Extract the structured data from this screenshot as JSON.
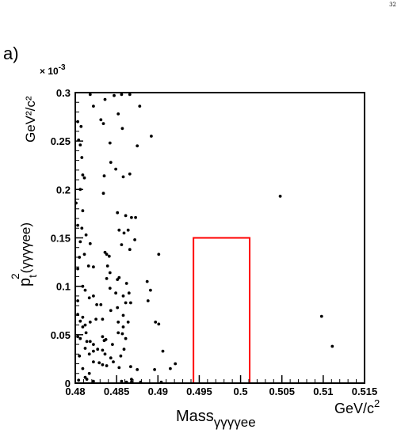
{
  "page_number": "32",
  "panel_label": "a)",
  "chart_data": {
    "type": "scatter",
    "y_multiplier": "× 10",
    "y_multiplier_exp": "-3",
    "xlabel_main": "Mass",
    "xlabel_sub": "γγγγee",
    "x_unit_main": "GeV/c",
    "x_unit_sup": "2",
    "ylabel_main": "p",
    "ylabel_sup": "2",
    "ylabel_sub": "t",
    "ylabel_rest": "(γγγγee)",
    "y_unit": "GeV²/c²",
    "xlim": [
      0.48,
      0.515
    ],
    "ylim": [
      0,
      0.3
    ],
    "xticks": [
      0.48,
      0.485,
      0.49,
      0.495,
      0.5,
      0.505,
      0.51,
      0.515
    ],
    "xtick_labels": [
      "0.48",
      "0.485",
      "0.49",
      "0.495",
      "0.5",
      "0.505",
      "0.51",
      "0.515"
    ],
    "yticks": [
      0,
      0.05,
      0.1,
      0.15,
      0.2,
      0.25,
      0.3
    ],
    "ytick_labels": [
      "0",
      "0.05",
      "0.1",
      "0.15",
      "0.2",
      "0.25",
      "0.3"
    ],
    "grid": false,
    "signal_box": {
      "x": [
        0.4943,
        0.5011
      ],
      "y": [
        0,
        0.15
      ],
      "color": "#ff0000"
    },
    "points": [
      [
        0.4818,
        0.298
      ],
      [
        0.4822,
        0.286
      ],
      [
        0.4836,
        0.293
      ],
      [
        0.4856,
        0.298
      ],
      [
        0.4866,
        0.298
      ],
      [
        0.4878,
        0.286
      ],
      [
        0.4852,
        0.278
      ],
      [
        0.4847,
        0.297
      ],
      [
        0.4803,
        0.27
      ],
      [
        0.4807,
        0.265
      ],
      [
        0.4831,
        0.272
      ],
      [
        0.4834,
        0.268
      ],
      [
        0.4857,
        0.263
      ],
      [
        0.4842,
        0.248
      ],
      [
        0.4804,
        0.251
      ],
      [
        0.4806,
        0.246
      ],
      [
        0.4875,
        0.245
      ],
      [
        0.4892,
        0.255
      ],
      [
        0.4808,
        0.233
      ],
      [
        0.4811,
        0.212
      ],
      [
        0.4809,
        0.215
      ],
      [
        0.4806,
        0.2
      ],
      [
        0.4835,
        0.214
      ],
      [
        0.4834,
        0.196
      ],
      [
        0.4843,
        0.228
      ],
      [
        0.4849,
        0.221
      ],
      [
        0.4851,
        0.176
      ],
      [
        0.4858,
        0.213
      ],
      [
        0.4861,
        0.173
      ],
      [
        0.4866,
        0.216
      ],
      [
        0.4868,
        0.171
      ],
      [
        0.4873,
        0.171
      ],
      [
        0.4801,
        0.186
      ],
      [
        0.4809,
        0.178
      ],
      [
        0.4803,
        0.163
      ],
      [
        0.4808,
        0.16
      ],
      [
        0.4813,
        0.153
      ],
      [
        0.4818,
        0.144
      ],
      [
        0.4806,
        0.146
      ],
      [
        0.4805,
        0.13
      ],
      [
        0.4811,
        0.133
      ],
      [
        0.4838,
        0.133
      ],
      [
        0.4841,
        0.131
      ],
      [
        0.4839,
        0.121
      ],
      [
        0.4842,
        0.114
      ],
      [
        0.4836,
        0.135
      ],
      [
        0.4853,
        0.158
      ],
      [
        0.4859,
        0.155
      ],
      [
        0.4864,
        0.158
      ],
      [
        0.4856,
        0.143
      ],
      [
        0.4872,
        0.148
      ],
      [
        0.4866,
        0.138
      ],
      [
        0.4901,
        0.133
      ],
      [
        0.4816,
        0.121
      ],
      [
        0.4822,
        0.12
      ],
      [
        0.4803,
        0.118
      ],
      [
        0.4809,
        0.1
      ],
      [
        0.4812,
        0.096
      ],
      [
        0.4817,
        0.088
      ],
      [
        0.4803,
        0.085
      ],
      [
        0.4822,
        0.09
      ],
      [
        0.4826,
        0.081
      ],
      [
        0.4831,
        0.081
      ],
      [
        0.4838,
        0.108
      ],
      [
        0.4842,
        0.098
      ],
      [
        0.4849,
        0.093
      ],
      [
        0.4851,
        0.107
      ],
      [
        0.4853,
        0.109
      ],
      [
        0.4858,
        0.09
      ],
      [
        0.4862,
        0.103
      ],
      [
        0.4865,
        0.093
      ],
      [
        0.4861,
        0.083
      ],
      [
        0.4867,
        0.083
      ],
      [
        0.4887,
        0.105
      ],
      [
        0.4891,
        0.096
      ],
      [
        0.4888,
        0.085
      ],
      [
        0.4803,
        0.071
      ],
      [
        0.4806,
        0.064
      ],
      [
        0.4809,
        0.068
      ],
      [
        0.4812,
        0.06
      ],
      [
        0.4818,
        0.063
      ],
      [
        0.4825,
        0.066
      ],
      [
        0.4833,
        0.066
      ],
      [
        0.4843,
        0.075
      ],
      [
        0.4851,
        0.078
      ],
      [
        0.4852,
        0.063
      ],
      [
        0.4858,
        0.07
      ],
      [
        0.4864,
        0.063
      ],
      [
        0.4858,
        0.058
      ],
      [
        0.4897,
        0.063
      ],
      [
        0.4901,
        0.061
      ],
      [
        0.4809,
        0.058
      ],
      [
        0.4813,
        0.052
      ],
      [
        0.4806,
        0.046
      ],
      [
        0.4814,
        0.043
      ],
      [
        0.4818,
        0.043
      ],
      [
        0.4822,
        0.04
      ],
      [
        0.4803,
        0.048
      ],
      [
        0.4833,
        0.048
      ],
      [
        0.4835,
        0.044
      ],
      [
        0.4837,
        0.045
      ],
      [
        0.4845,
        0.04
      ],
      [
        0.4852,
        0.052
      ],
      [
        0.4857,
        0.051
      ],
      [
        0.4861,
        0.046
      ],
      [
        0.4812,
        0.036
      ],
      [
        0.4817,
        0.03
      ],
      [
        0.4822,
        0.033
      ],
      [
        0.4827,
        0.035
      ],
      [
        0.4833,
        0.034
      ],
      [
        0.4836,
        0.03
      ],
      [
        0.4843,
        0.026
      ],
      [
        0.4805,
        0.028
      ],
      [
        0.4822,
        0.022
      ],
      [
        0.4829,
        0.021
      ],
      [
        0.4833,
        0.019
      ],
      [
        0.4838,
        0.018
      ],
      [
        0.4846,
        0.022
      ],
      [
        0.4855,
        0.028
      ],
      [
        0.4853,
        0.016
      ],
      [
        0.4867,
        0.017
      ],
      [
        0.4859,
        0.035
      ],
      [
        0.4809,
        0.015
      ],
      [
        0.4817,
        0.01
      ],
      [
        0.4812,
        0.006
      ],
      [
        0.4804,
        0.003
      ],
      [
        0.4814,
        0.004
      ],
      [
        0.4822,
        0.002
      ],
      [
        0.4856,
        0.002
      ],
      [
        0.4862,
        0.001
      ],
      [
        0.4868,
        0.001
      ],
      [
        0.4879,
        0.001
      ],
      [
        0.4904,
        0.001
      ],
      [
        0.4868,
        0.004
      ],
      [
        0.4875,
        0.014
      ],
      [
        0.4896,
        0.014
      ],
      [
        0.4906,
        0.033
      ],
      [
        0.4915,
        0.015
      ],
      [
        0.4921,
        0.02
      ],
      [
        0.5048,
        0.193
      ],
      [
        0.5098,
        0.069
      ],
      [
        0.5111,
        0.038
      ]
    ]
  }
}
